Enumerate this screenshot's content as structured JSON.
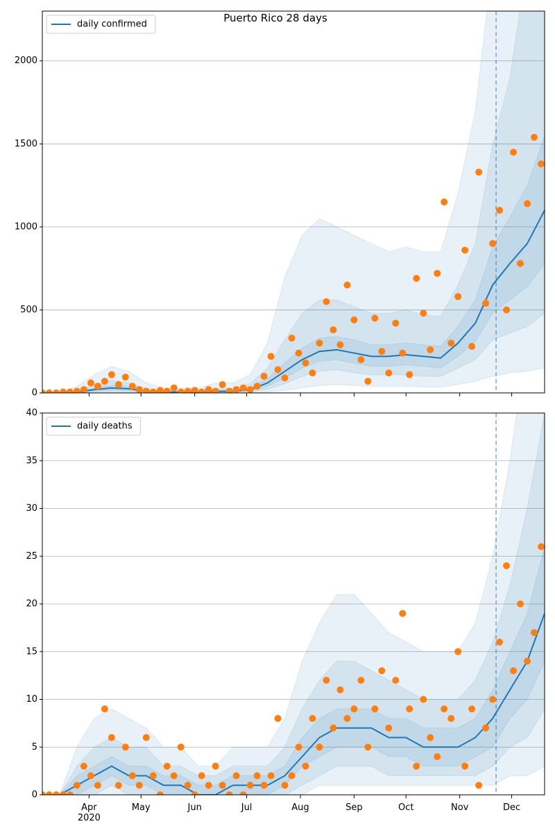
{
  "chart_data": [
    {
      "type": "line",
      "title": "Puerto Rico 28 days",
      "x": [
        4,
        14,
        24,
        34,
        44,
        54,
        64,
        74,
        84,
        94,
        104,
        114,
        124,
        134,
        144,
        154,
        164,
        174,
        184,
        194,
        204,
        214,
        224,
        234,
        244,
        254,
        264,
        274,
        284,
        294
      ],
      "series": [
        {
          "name": "daily confirmed",
          "color": "#1f77b4",
          "values": [
            0,
            0,
            5,
            20,
            30,
            25,
            10,
            5,
            5,
            5,
            10,
            10,
            20,
            60,
            130,
            200,
            250,
            260,
            240,
            220,
            220,
            230,
            220,
            210,
            300,
            420,
            650,
            780,
            900,
            1100
          ]
        }
      ],
      "band_color": "#1f77b4",
      "bands": [
        {
          "lower": [
            0,
            0,
            0,
            0,
            2,
            1,
            0,
            0,
            0,
            0,
            0,
            0,
            0,
            5,
            15,
            30,
            45,
            50,
            45,
            40,
            40,
            40,
            35,
            35,
            50,
            70,
            100,
            120,
            130,
            150
          ],
          "upper": [
            0,
            0,
            40,
            110,
            160,
            130,
            60,
            30,
            30,
            30,
            60,
            60,
            110,
            300,
            700,
            950,
            1050,
            1000,
            950,
            900,
            850,
            880,
            850,
            850,
            1200,
            1700,
            2600,
            3200,
            3800,
            4500
          ]
        },
        {
          "lower": [
            0,
            0,
            0,
            6,
            10,
            8,
            2,
            0,
            0,
            0,
            2,
            2,
            6,
            22,
            55,
            100,
            130,
            140,
            120,
            110,
            110,
            110,
            100,
            100,
            150,
            200,
            320,
            360,
            400,
            480
          ],
          "upper": [
            0,
            0,
            15,
            50,
            75,
            60,
            28,
            15,
            15,
            15,
            28,
            28,
            55,
            150,
            320,
            480,
            560,
            560,
            520,
            480,
            480,
            500,
            470,
            460,
            650,
            900,
            1500,
            1900,
            2600,
            3000
          ]
        },
        {
          "lower": [
            0,
            0,
            2,
            12,
            18,
            15,
            5,
            2,
            2,
            2,
            5,
            5,
            12,
            40,
            90,
            150,
            190,
            200,
            180,
            160,
            160,
            170,
            160,
            150,
            220,
            310,
            480,
            560,
            640,
            780
          ],
          "upper": [
            0,
            0,
            8,
            30,
            45,
            38,
            16,
            8,
            8,
            8,
            16,
            16,
            30,
            85,
            180,
            270,
            330,
            340,
            320,
            290,
            290,
            300,
            290,
            280,
            400,
            560,
            880,
            1060,
            1250,
            1550
          ]
        }
      ],
      "points": {
        "color": "#ff7f0e",
        "x": [
          4,
          8,
          12,
          16,
          20,
          24,
          28,
          32,
          36,
          40,
          44,
          48,
          52,
          56,
          60,
          64,
          68,
          72,
          76,
          80,
          84,
          88,
          92,
          96,
          100,
          104,
          108,
          112,
          116,
          120,
          124,
          128,
          132,
          136,
          140,
          144,
          148,
          152,
          156,
          160,
          164,
          168,
          172,
          176,
          180,
          184,
          188,
          192,
          196,
          200,
          204,
          208,
          212,
          216,
          220,
          224,
          228,
          232,
          236,
          240,
          244,
          248,
          252,
          256,
          260,
          264,
          268,
          272,
          276,
          280,
          284,
          288,
          292
        ],
        "values": [
          0,
          0,
          0,
          5,
          5,
          10,
          20,
          60,
          40,
          70,
          110,
          50,
          95,
          40,
          20,
          10,
          5,
          15,
          10,
          30,
          5,
          10,
          15,
          5,
          20,
          10,
          50,
          10,
          20,
          30,
          20,
          40,
          100,
          220,
          140,
          90,
          330,
          240,
          180,
          120,
          300,
          550,
          380,
          290,
          650,
          440,
          200,
          70,
          450,
          250,
          120,
          420,
          240,
          110,
          690,
          480,
          260,
          720,
          1150,
          300,
          580,
          860,
          280,
          1330,
          540,
          900,
          1100,
          500,
          1450,
          780,
          1140,
          1540,
          1380
        ]
      },
      "forecast_start": 266,
      "xlim": [
        4,
        294
      ],
      "ylim": [
        0,
        2300
      ],
      "yticks": [
        0,
        500,
        1000,
        1500,
        2000
      ],
      "grid": true,
      "legend": "upper left"
    },
    {
      "type": "line",
      "x": [
        4,
        14,
        24,
        34,
        44,
        54,
        64,
        74,
        84,
        94,
        104,
        114,
        124,
        134,
        144,
        154,
        164,
        174,
        184,
        194,
        204,
        214,
        224,
        234,
        244,
        254,
        264,
        274,
        284,
        294
      ],
      "series": [
        {
          "name": "daily deaths",
          "color": "#1f77b4",
          "values": [
            0,
            0,
            1,
            2,
            3,
            2,
            2,
            1,
            1,
            0,
            0,
            1,
            1,
            1,
            2,
            4,
            6,
            7,
            7,
            7,
            6,
            6,
            5,
            5,
            5,
            6,
            8,
            11,
            14,
            19
          ]
        }
      ],
      "band_color": "#1f77b4",
      "bands": [
        {
          "lower": [
            0,
            0,
            0,
            0,
            0,
            0,
            0,
            0,
            0,
            0,
            0,
            0,
            0,
            0,
            0,
            0,
            1,
            1,
            1,
            1,
            1,
            1,
            1,
            1,
            1,
            1,
            1,
            2,
            2,
            3
          ],
          "upper": [
            0,
            0,
            5,
            8,
            9,
            8,
            7,
            5,
            5,
            3,
            3,
            5,
            5,
            5,
            8,
            14,
            18,
            21,
            21,
            19,
            17,
            16,
            15,
            15,
            15,
            18,
            25,
            35,
            48,
            60
          ]
        },
        {
          "lower": [
            0,
            0,
            0,
            0,
            1,
            0,
            0,
            0,
            0,
            0,
            0,
            0,
            0,
            0,
            0,
            1,
            2,
            3,
            3,
            3,
            2,
            2,
            2,
            2,
            2,
            2,
            3,
            5,
            6,
            9
          ],
          "upper": [
            0,
            0,
            3,
            5,
            6,
            5,
            5,
            3,
            3,
            2,
            2,
            3,
            3,
            3,
            5,
            9,
            12,
            14,
            14,
            13,
            12,
            11,
            10,
            10,
            10,
            12,
            16,
            22,
            30,
            40
          ]
        },
        {
          "lower": [
            0,
            0,
            0,
            1,
            2,
            1,
            1,
            0,
            0,
            0,
            0,
            0,
            0,
            0,
            1,
            3,
            4,
            5,
            5,
            5,
            4,
            4,
            3,
            3,
            3,
            4,
            5,
            8,
            10,
            14
          ],
          "upper": [
            0,
            0,
            2,
            3,
            4,
            3,
            3,
            2,
            2,
            1,
            1,
            2,
            2,
            2,
            3,
            6,
            8,
            9,
            9,
            9,
            8,
            8,
            7,
            7,
            7,
            8,
            11,
            15,
            19,
            26
          ]
        }
      ],
      "points": {
        "color": "#ff7f0e",
        "x": [
          4,
          8,
          12,
          16,
          20,
          24,
          28,
          32,
          36,
          40,
          44,
          48,
          52,
          56,
          60,
          64,
          68,
          72,
          76,
          80,
          84,
          88,
          92,
          96,
          100,
          104,
          108,
          112,
          116,
          120,
          124,
          128,
          132,
          136,
          140,
          144,
          148,
          152,
          156,
          160,
          164,
          168,
          172,
          176,
          180,
          184,
          188,
          192,
          196,
          200,
          204,
          208,
          212,
          216,
          220,
          224,
          228,
          232,
          236,
          240,
          244,
          248,
          252,
          256,
          260,
          264,
          268,
          272,
          276,
          280,
          284,
          288,
          292
        ],
        "values": [
          0,
          0,
          0,
          0,
          0,
          1,
          3,
          2,
          1,
          9,
          6,
          1,
          5,
          2,
          1,
          6,
          2,
          0,
          3,
          2,
          5,
          1,
          0,
          2,
          1,
          3,
          1,
          0,
          2,
          0,
          1,
          2,
          1,
          2,
          8,
          1,
          2,
          5,
          3,
          8,
          5,
          12,
          7,
          11,
          8,
          9,
          12,
          5,
          9,
          13,
          7,
          12,
          19,
          9,
          3,
          10,
          6,
          4,
          9,
          8,
          15,
          3,
          9,
          1,
          7,
          10,
          16,
          24,
          13,
          20,
          14,
          17,
          26
        ]
      },
      "forecast_start": 266,
      "xlim": [
        4,
        294
      ],
      "ylim": [
        0,
        40
      ],
      "yticks": [
        0,
        5,
        10,
        15,
        20,
        25,
        30,
        35,
        40
      ],
      "xticks": [
        {
          "value": 31,
          "label": "Apr\n2020"
        },
        {
          "value": 61,
          "label": "May"
        },
        {
          "value": 92,
          "label": "Jun"
        },
        {
          "value": 122,
          "label": "Jul"
        },
        {
          "value": 153,
          "label": "Aug"
        },
        {
          "value": 184,
          "label": "Sep"
        },
        {
          "value": 214,
          "label": "Oct"
        },
        {
          "value": 245,
          "label": "Nov"
        },
        {
          "value": 275,
          "label": "Dec"
        }
      ],
      "grid": true,
      "legend": "upper left"
    }
  ]
}
